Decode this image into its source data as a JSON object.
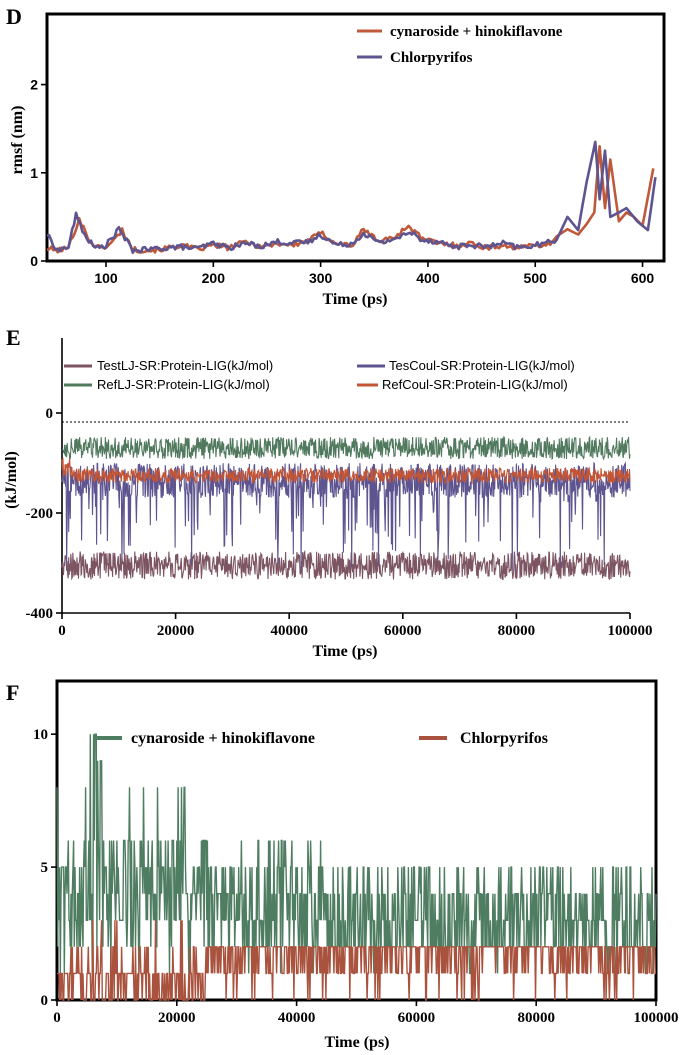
{
  "colors": {
    "orange": "#C0583A",
    "purple": "#5E5590",
    "mauve": "#7D5562",
    "green": "#50795E",
    "red_orange": "#C35535",
    "hb_green": "#4F7D61",
    "hb_brown": "#A9533E"
  },
  "chart_data": [
    {
      "panel": "D",
      "type": "line",
      "xlabel": "Time (ps)",
      "ylabel": "rmsf (nm)",
      "xlim": [
        45,
        620
      ],
      "ylim": [
        0,
        2.8
      ],
      "xticks": [
        100,
        200,
        300,
        400,
        500,
        600
      ],
      "yticks": [
        0,
        1,
        2
      ],
      "legend": {
        "position": "top-right"
      },
      "series": [
        {
          "name": "cynaroside + hinokiflavone",
          "color": "#C0583A",
          "x": [
            45,
            55,
            65,
            75,
            85,
            95,
            105,
            115,
            125,
            140,
            155,
            170,
            185,
            200,
            215,
            230,
            245,
            260,
            275,
            290,
            300,
            315,
            330,
            340,
            355,
            370,
            382,
            395,
            410,
            425,
            440,
            455,
            470,
            485,
            500,
            510,
            520,
            530,
            540,
            548,
            555,
            560,
            565,
            570,
            578,
            585,
            592,
            600,
            610
          ],
          "y": [
            0.14,
            0.12,
            0.15,
            0.48,
            0.22,
            0.14,
            0.2,
            0.35,
            0.13,
            0.12,
            0.14,
            0.18,
            0.13,
            0.18,
            0.15,
            0.22,
            0.16,
            0.2,
            0.18,
            0.24,
            0.32,
            0.2,
            0.18,
            0.36,
            0.22,
            0.28,
            0.4,
            0.25,
            0.2,
            0.18,
            0.2,
            0.15,
            0.18,
            0.14,
            0.2,
            0.16,
            0.28,
            0.36,
            0.3,
            0.42,
            0.55,
            1.3,
            0.6,
            1.15,
            0.45,
            0.55,
            0.5,
            0.4,
            1.05
          ]
        },
        {
          "name": "Chlorpyrifos",
          "color": "#5E5590",
          "x": [
            45,
            55,
            65,
            72,
            80,
            90,
            100,
            112,
            125,
            140,
            155,
            170,
            185,
            200,
            215,
            230,
            245,
            260,
            275,
            290,
            300,
            315,
            330,
            340,
            355,
            370,
            385,
            395,
            410,
            425,
            440,
            455,
            470,
            485,
            500,
            510,
            520,
            530,
            540,
            548,
            556,
            560,
            565,
            570,
            578,
            585,
            595,
            605,
            612
          ],
          "y": [
            0.3,
            0.12,
            0.16,
            0.52,
            0.3,
            0.14,
            0.18,
            0.36,
            0.12,
            0.13,
            0.15,
            0.16,
            0.14,
            0.2,
            0.15,
            0.2,
            0.17,
            0.22,
            0.2,
            0.22,
            0.3,
            0.18,
            0.2,
            0.32,
            0.2,
            0.26,
            0.32,
            0.24,
            0.22,
            0.16,
            0.18,
            0.16,
            0.2,
            0.15,
            0.18,
            0.2,
            0.24,
            0.5,
            0.35,
            0.9,
            1.35,
            0.7,
            1.25,
            0.5,
            0.55,
            0.6,
            0.45,
            0.35,
            0.95
          ]
        }
      ]
    },
    {
      "panel": "E",
      "type": "line",
      "xlabel": "Time (ps)",
      "ylabel": "(kJ/mol)",
      "xlim": [
        0,
        100000
      ],
      "ylim": [
        -400,
        150
      ],
      "xticks": [
        0,
        20000,
        40000,
        60000,
        80000,
        100000
      ],
      "yticks": [
        -400,
        -200,
        0
      ],
      "legend": {
        "position": "top"
      },
      "series": [
        {
          "name": "TestLJ-SR:Protein-LIG(kJ/mol)",
          "color": "#7D5562",
          "mean": -305,
          "noise": 28
        },
        {
          "name": "RefLJ-SR:Protein-LIG(kJ/mol)",
          "color": "#50795E",
          "mean": -70,
          "noise": 22
        },
        {
          "name": "TesCoul-SR:Protein-LIG(kJ/mol)",
          "color": "#5E5590",
          "mean": -135,
          "noise": 35
        },
        {
          "name": "RefCoul-SR:Protein-LIG(kJ/mol)",
          "color": "#C35535",
          "mean": -125,
          "noise": 15
        }
      ]
    },
    {
      "panel": "F",
      "type": "line",
      "xlabel": "Time (ps)",
      "ylabel": "",
      "xlim": [
        0,
        100000
      ],
      "ylim": [
        0,
        12
      ],
      "xticks": [
        0,
        20000,
        40000,
        60000,
        80000,
        100000
      ],
      "yticks": [
        0,
        5,
        10
      ],
      "legend": {
        "position": "top"
      },
      "series": [
        {
          "name": "cynaroside + hinokiflavone",
          "color": "#4F7D61",
          "mean": 3.5,
          "max": 10
        },
        {
          "name": "Chlorpyrifos",
          "color": "#A9533E",
          "mean": 1.5,
          "max": 3
        }
      ]
    }
  ]
}
